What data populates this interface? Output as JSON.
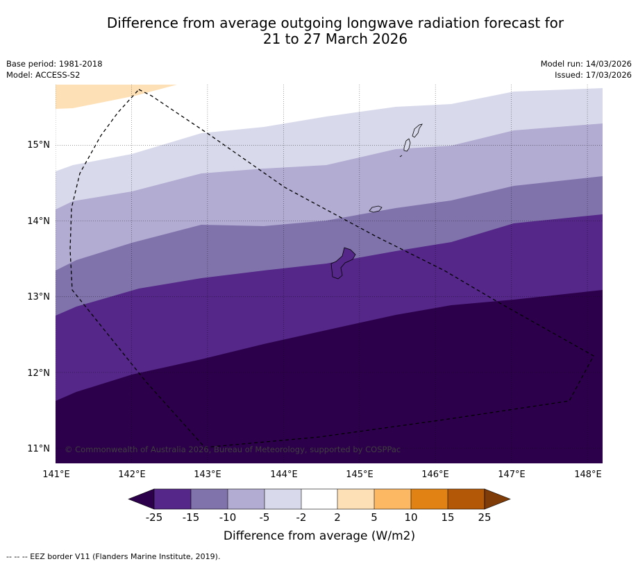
{
  "title_line1": "Difference from average outgoing longwave radiation forecast for",
  "title_line2": "21 to 27 March 2026",
  "meta": {
    "base_period": "Base period: 1981-2018",
    "model": "Model: ACCESS-S2",
    "model_run": "Model run: 14/03/2026",
    "issued": "Issued: 17/03/2026"
  },
  "map": {
    "lon_labels": [
      "141°E",
      "142°E",
      "143°E",
      "144°E",
      "145°E",
      "146°E",
      "147°E",
      "148°E"
    ],
    "lat_labels": [
      "15°N",
      "14°N",
      "13°N",
      "12°N",
      "11°N"
    ],
    "lon_range": [
      141,
      148.2
    ],
    "lat_range": [
      10.8,
      15.8
    ],
    "copyright": "© Commonwealth of Australia 2026, Bureau of Meteorology, supported by COSPPac"
  },
  "colorbar": {
    "tick_labels": [
      "-25",
      "-15",
      "-10",
      "-5",
      "-2",
      "2",
      "5",
      "10",
      "15",
      "25"
    ],
    "colors": [
      "#2d004b",
      "#542788",
      "#8073ac",
      "#b2abd2",
      "#d8daeb",
      "#ffffff",
      "#fee0b6",
      "#fdb863",
      "#e08214",
      "#b35806",
      "#7f3b08"
    ],
    "label": "Difference from average (W/m2)"
  },
  "footnote": "--  --  -- EEZ border V11 (Flanders Marine Institute, 2019)."
}
